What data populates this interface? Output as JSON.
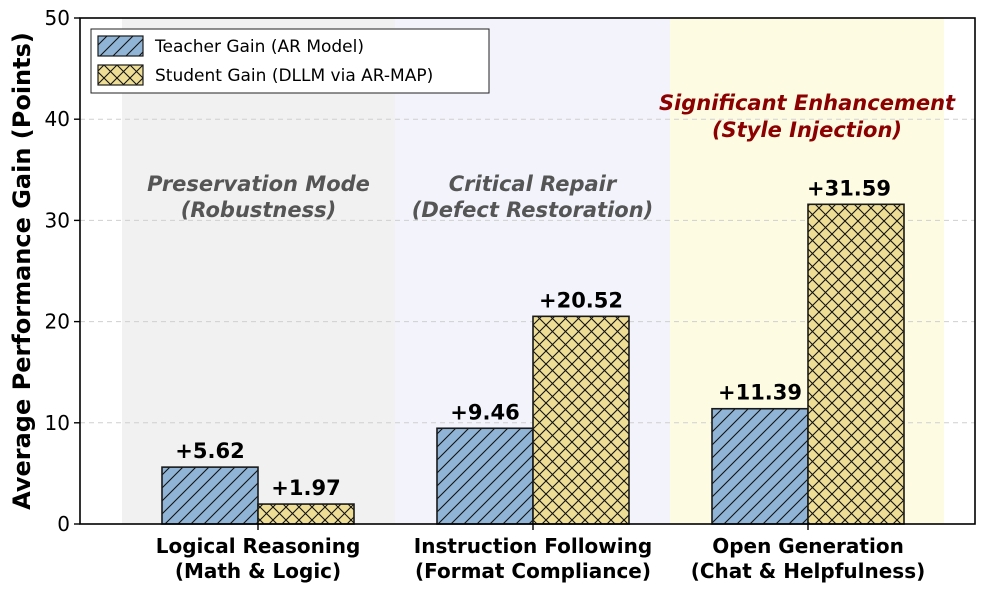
{
  "chart_data": {
    "type": "bar",
    "ylabel": "Average Performance Gain (Points)",
    "ylim": [
      0,
      50
    ],
    "yticks": [
      0,
      10,
      20,
      30,
      40,
      50
    ],
    "grid": true,
    "legend_position": "top-left",
    "categories": [
      {
        "line1": "Logical Reasoning",
        "line2": "(Math & Logic)"
      },
      {
        "line1": "Instruction Following",
        "line2": "(Format Compliance)"
      },
      {
        "line1": "Open Generation",
        "line2": "(Chat & Helpfulness)"
      }
    ],
    "series": [
      {
        "name": "Teacher Gain (AR Model)",
        "color": "#8fb4d6",
        "pattern": "diagonal-hatch",
        "values": [
          5.62,
          9.46,
          11.39
        ],
        "labels": [
          "+5.62",
          "+9.46",
          "+11.39"
        ]
      },
      {
        "name": "Student Gain (DLLM via AR-MAP)",
        "color": "#eedd95",
        "pattern": "cross-hatch",
        "values": [
          1.97,
          20.52,
          31.59
        ],
        "labels": [
          "+1.97",
          "+20.52",
          "+31.59"
        ]
      }
    ],
    "regions": [
      {
        "line1": "Preservation Mode",
        "line2": "(Robustness)",
        "background": "#f1f1f1",
        "text_color": "#555555"
      },
      {
        "line1": "Critical Repair",
        "line2": "(Defect Restoration)",
        "background": "#f2f3fb",
        "text_color": "#555555"
      },
      {
        "line1": "Significant Enhancement",
        "line2": "(Style Injection)",
        "background": "#fefbe3",
        "text_color": "#8b0000"
      }
    ]
  }
}
